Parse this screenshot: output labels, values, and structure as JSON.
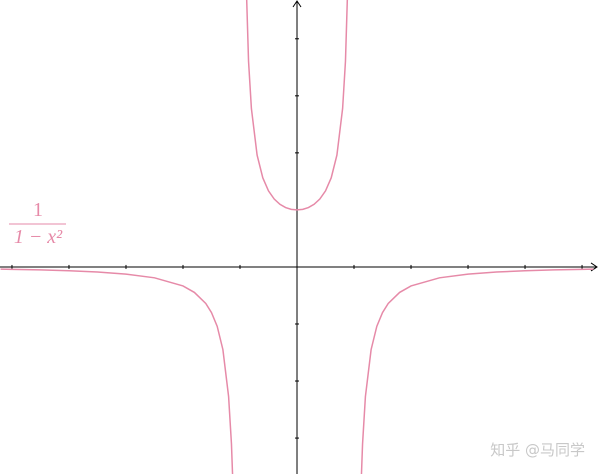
{
  "chart_data": {
    "type": "line",
    "annotation": {
      "numerator": "1",
      "denominator": "1 − x²"
    },
    "watermark": "知乎 @马同学",
    "xlim": [
      -5.21,
      5.28
    ],
    "ylim": [
      -3.63,
      4.68
    ],
    "xticks": [
      -5,
      -4,
      -3,
      -2,
      -1,
      1,
      2,
      3,
      4,
      5
    ],
    "yticks": [
      -3,
      -2,
      -1,
      1,
      2,
      3,
      4
    ],
    "x": [
      -5.2,
      -5,
      -4.5,
      -4,
      -3.5,
      -3,
      -2.5,
      -2,
      -1.8,
      -1.6,
      -1.5,
      -1.4,
      -1.3,
      -1.2,
      -1.15,
      -1.12,
      -1,
      -0.9,
      -0.85,
      -0.8,
      -0.7,
      -0.6,
      -0.5,
      -0.4,
      -0.3,
      -0.2,
      -0.1,
      0,
      0.1,
      0.2,
      0.3,
      0.4,
      0.5,
      0.6,
      0.7,
      0.8,
      0.85,
      0.9,
      1,
      1.12,
      1.15,
      1.2,
      1.3,
      1.4,
      1.5,
      1.6,
      1.8,
      2,
      2.5,
      3,
      3.5,
      4,
      4.5,
      5,
      5.2
    ],
    "series": [
      {
        "color": "#e68aa8",
        "values": [
          -0.0384,
          -0.0417,
          -0.0519,
          -0.0667,
          -0.0889,
          -0.125,
          -0.1905,
          -0.3333,
          -0.4464,
          -0.641,
          -0.8,
          -1.0417,
          -1.4493,
          -2.2727,
          -3.1008,
          -3.9308,
          null,
          5.263,
          3.6036,
          2.7778,
          1.9608,
          1.5625,
          1.3333,
          1.1905,
          1.0989,
          1.0417,
          1.0101,
          1,
          1.0101,
          1.0417,
          1.0989,
          1.1905,
          1.3333,
          1.5625,
          1.9608,
          2.7778,
          3.6036,
          5.263,
          null,
          -3.9308,
          -3.1008,
          -2.2727,
          -1.4493,
          -1.0417,
          -0.8,
          -0.641,
          -0.4464,
          -0.3333,
          -0.1905,
          -0.125,
          -0.0889,
          -0.0667,
          -0.0519,
          -0.0417,
          -0.0384
        ]
      }
    ]
  }
}
